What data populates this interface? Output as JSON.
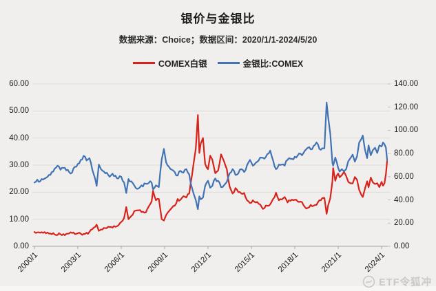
{
  "header": {
    "title": "银价与金银比",
    "subtitle": "数据来源：Choice；数据区间：2020/1/1-2024/5/20"
  },
  "watermark": {
    "text": "ETF令狐冲"
  },
  "chart_data": {
    "type": "line",
    "title": "银价与金银比",
    "subtitle": "数据来源：Choice；数据区间：2020/1/1-2024/5/20",
    "grid": "horizontal",
    "legend_position": "top",
    "x_ticks": [
      "2000/1",
      "2003/1",
      "2006/1",
      "2009/1",
      "2012/1",
      "2015/1",
      "2018/1",
      "2021/1",
      "2024/1"
    ],
    "x_tick_years": [
      2000,
      2003,
      2006,
      2009,
      2012,
      2015,
      2018,
      2021,
      2024
    ],
    "left_axis": {
      "min": 0,
      "max": 60,
      "ticks": [
        "0.00",
        "10.00",
        "20.00",
        "30.00",
        "40.00",
        "50.00",
        "60.00"
      ]
    },
    "right_axis": {
      "min": 0,
      "max": 140,
      "ticks": [
        "0.00",
        "20.00",
        "40.00",
        "60.00",
        "80.00",
        "100.00",
        "120.00",
        "140.00"
      ]
    },
    "series": [
      {
        "name": "COMEX白银",
        "axis": "left",
        "color": "#d8231c",
        "points": [
          [
            2000.0,
            5.3
          ],
          [
            2000.2,
            5.15
          ],
          [
            2000.4,
            5.0
          ],
          [
            2000.6,
            4.95
          ],
          [
            2000.8,
            4.8
          ],
          [
            2001.0,
            4.7
          ],
          [
            2001.2,
            4.45
          ],
          [
            2001.4,
            4.35
          ],
          [
            2001.6,
            4.2
          ],
          [
            2001.8,
            4.4
          ],
          [
            2002.0,
            4.5
          ],
          [
            2002.2,
            4.6
          ],
          [
            2002.4,
            4.75
          ],
          [
            2002.6,
            4.9
          ],
          [
            2002.8,
            4.5
          ],
          [
            2003.0,
            4.8
          ],
          [
            2003.2,
            4.65
          ],
          [
            2003.4,
            4.55
          ],
          [
            2003.6,
            5.0
          ],
          [
            2003.8,
            5.3
          ],
          [
            2004.0,
            6.3
          ],
          [
            2004.2,
            7.2
          ],
          [
            2004.3,
            8.0
          ],
          [
            2004.45,
            5.7
          ],
          [
            2004.6,
            6.2
          ],
          [
            2004.8,
            6.8
          ],
          [
            2005.0,
            6.7
          ],
          [
            2005.2,
            7.1
          ],
          [
            2005.4,
            6.9
          ],
          [
            2005.6,
            7.2
          ],
          [
            2005.8,
            7.7
          ],
          [
            2006.0,
            9.0
          ],
          [
            2006.2,
            10.5
          ],
          [
            2006.35,
            14.5
          ],
          [
            2006.5,
            10.0
          ],
          [
            2006.7,
            11.2
          ],
          [
            2006.9,
            13.0
          ],
          [
            2007.1,
            13.3
          ],
          [
            2007.3,
            13.4
          ],
          [
            2007.5,
            12.8
          ],
          [
            2007.7,
            12.5
          ],
          [
            2007.9,
            14.7
          ],
          [
            2008.1,
            16.5
          ],
          [
            2008.2,
            20.5
          ],
          [
            2008.4,
            17.0
          ],
          [
            2008.6,
            17.5
          ],
          [
            2008.8,
            10.0
          ],
          [
            2008.95,
            9.5
          ],
          [
            2009.1,
            11.5
          ],
          [
            2009.3,
            13.0
          ],
          [
            2009.5,
            14.2
          ],
          [
            2009.7,
            15.0
          ],
          [
            2009.9,
            17.5
          ],
          [
            2010.1,
            17.2
          ],
          [
            2010.3,
            18.5
          ],
          [
            2010.5,
            18.0
          ],
          [
            2010.7,
            19.5
          ],
          [
            2010.9,
            26.5
          ],
          [
            2011.0,
            30.5
          ],
          [
            2011.15,
            36.0
          ],
          [
            2011.3,
            48.5
          ],
          [
            2011.4,
            34.5
          ],
          [
            2011.5,
            38.0
          ],
          [
            2011.65,
            40.0
          ],
          [
            2011.8,
            30.5
          ],
          [
            2012.0,
            28.5
          ],
          [
            2012.15,
            33.5
          ],
          [
            2012.3,
            32.0
          ],
          [
            2012.5,
            27.0
          ],
          [
            2012.7,
            28.0
          ],
          [
            2012.9,
            34.0
          ],
          [
            2013.1,
            31.5
          ],
          [
            2013.3,
            28.5
          ],
          [
            2013.5,
            22.0
          ],
          [
            2013.7,
            19.5
          ],
          [
            2013.9,
            21.5
          ],
          [
            2014.1,
            20.0
          ],
          [
            2014.3,
            19.5
          ],
          [
            2014.5,
            19.7
          ],
          [
            2014.7,
            17.0
          ],
          [
            2014.9,
            16.0
          ],
          [
            2015.1,
            17.0
          ],
          [
            2015.3,
            16.2
          ],
          [
            2015.5,
            15.7
          ],
          [
            2015.7,
            14.6
          ],
          [
            2015.9,
            14.1
          ],
          [
            2016.1,
            15.0
          ],
          [
            2016.3,
            15.5
          ],
          [
            2016.5,
            17.5
          ],
          [
            2016.7,
            19.8
          ],
          [
            2016.9,
            17.0
          ],
          [
            2017.1,
            17.3
          ],
          [
            2017.3,
            18.2
          ],
          [
            2017.5,
            16.2
          ],
          [
            2017.7,
            16.8
          ],
          [
            2017.9,
            17.0
          ],
          [
            2018.1,
            17.2
          ],
          [
            2018.3,
            16.4
          ],
          [
            2018.5,
            16.3
          ],
          [
            2018.7,
            14.5
          ],
          [
            2018.9,
            14.2
          ],
          [
            2019.1,
            15.3
          ],
          [
            2019.3,
            15.0
          ],
          [
            2019.5,
            15.3
          ],
          [
            2019.7,
            17.0
          ],
          [
            2019.9,
            17.8
          ],
          [
            2020.05,
            17.9
          ],
          [
            2020.2,
            12.0
          ],
          [
            2020.3,
            15.0
          ],
          [
            2020.45,
            17.8
          ],
          [
            2020.6,
            24.0
          ],
          [
            2020.65,
            28.9
          ],
          [
            2020.8,
            24.2
          ],
          [
            2021.0,
            26.9
          ],
          [
            2021.1,
            25.5
          ],
          [
            2021.25,
            26.3
          ],
          [
            2021.4,
            27.5
          ],
          [
            2021.55,
            26.0
          ],
          [
            2021.7,
            23.8
          ],
          [
            2021.85,
            23.3
          ],
          [
            2022.0,
            23.2
          ],
          [
            2022.15,
            25.6
          ],
          [
            2022.3,
            24.6
          ],
          [
            2022.45,
            20.8
          ],
          [
            2022.6,
            19.0
          ],
          [
            2022.7,
            18.2
          ],
          [
            2022.85,
            21.2
          ],
          [
            2023.0,
            24.0
          ],
          [
            2023.1,
            21.8
          ],
          [
            2023.25,
            25.4
          ],
          [
            2023.4,
            23.6
          ],
          [
            2023.55,
            23.0
          ],
          [
            2023.7,
            23.3
          ],
          [
            2023.85,
            21.9
          ],
          [
            2024.0,
            23.8
          ],
          [
            2024.1,
            22.4
          ],
          [
            2024.2,
            23.3
          ],
          [
            2024.3,
            26.7
          ],
          [
            2024.38,
            31.5
          ]
        ]
      },
      {
        "name": "金银比:COMEX",
        "axis": "right",
        "color": "#4173b4",
        "points": [
          [
            2000.0,
            55
          ],
          [
            2000.2,
            57.5
          ],
          [
            2000.4,
            56
          ],
          [
            2000.6,
            57.5
          ],
          [
            2000.8,
            59
          ],
          [
            2001.0,
            61.5
          ],
          [
            2001.2,
            64
          ],
          [
            2001.4,
            67
          ],
          [
            2001.6,
            69.5
          ],
          [
            2001.8,
            66
          ],
          [
            2002.0,
            67.5
          ],
          [
            2002.2,
            65.5
          ],
          [
            2002.4,
            64
          ],
          [
            2002.6,
            63.5
          ],
          [
            2002.8,
            68.5
          ],
          [
            2003.0,
            71
          ],
          [
            2003.2,
            74.5
          ],
          [
            2003.4,
            78
          ],
          [
            2003.6,
            74
          ],
          [
            2003.8,
            76
          ],
          [
            2004.0,
            66
          ],
          [
            2004.2,
            58
          ],
          [
            2004.3,
            52
          ],
          [
            2004.45,
            70.5
          ],
          [
            2004.6,
            66.5
          ],
          [
            2004.8,
            64.5
          ],
          [
            2005.0,
            63.5
          ],
          [
            2005.2,
            60
          ],
          [
            2005.4,
            62.5
          ],
          [
            2005.6,
            61
          ],
          [
            2005.8,
            58.5
          ],
          [
            2006.0,
            60
          ],
          [
            2006.2,
            55
          ],
          [
            2006.35,
            46
          ],
          [
            2006.5,
            58
          ],
          [
            2006.7,
            56
          ],
          [
            2006.9,
            52.5
          ],
          [
            2007.1,
            49.5
          ],
          [
            2007.3,
            51
          ],
          [
            2007.5,
            51.5
          ],
          [
            2007.7,
            54
          ],
          [
            2007.9,
            54.5
          ],
          [
            2008.1,
            55
          ],
          [
            2008.2,
            49
          ],
          [
            2008.4,
            52.5
          ],
          [
            2008.6,
            51
          ],
          [
            2008.8,
            75
          ],
          [
            2008.95,
            84
          ],
          [
            2009.1,
            72.5
          ],
          [
            2009.3,
            68.5
          ],
          [
            2009.5,
            66
          ],
          [
            2009.7,
            64
          ],
          [
            2009.9,
            61
          ],
          [
            2010.1,
            65
          ],
          [
            2010.3,
            63.5
          ],
          [
            2010.5,
            66.5
          ],
          [
            2010.7,
            62
          ],
          [
            2010.9,
            50
          ],
          [
            2011.0,
            45.5
          ],
          [
            2011.15,
            40
          ],
          [
            2011.3,
            32
          ],
          [
            2011.4,
            43
          ],
          [
            2011.5,
            40.5
          ],
          [
            2011.65,
            42
          ],
          [
            2011.8,
            52
          ],
          [
            2012.0,
            56.5
          ],
          [
            2012.15,
            50.5
          ],
          [
            2012.3,
            52
          ],
          [
            2012.5,
            58.5
          ],
          [
            2012.7,
            56.5
          ],
          [
            2012.9,
            51
          ],
          [
            2013.1,
            52.5
          ],
          [
            2013.3,
            55.5
          ],
          [
            2013.5,
            63
          ],
          [
            2013.7,
            66.5
          ],
          [
            2013.9,
            61.5
          ],
          [
            2014.1,
            63
          ],
          [
            2014.3,
            66.5
          ],
          [
            2014.5,
            64
          ],
          [
            2014.7,
            70
          ],
          [
            2014.9,
            74.5
          ],
          [
            2015.1,
            69.5
          ],
          [
            2015.3,
            72
          ],
          [
            2015.5,
            74
          ],
          [
            2015.7,
            76.5
          ],
          [
            2015.9,
            75.5
          ],
          [
            2016.1,
            79.5
          ],
          [
            2016.3,
            82.5
          ],
          [
            2016.5,
            74
          ],
          [
            2016.7,
            66.5
          ],
          [
            2016.9,
            70.5
          ],
          [
            2017.1,
            70.5
          ],
          [
            2017.3,
            69.5
          ],
          [
            2017.5,
            74.5
          ],
          [
            2017.7,
            75.5
          ],
          [
            2017.9,
            75
          ],
          [
            2018.1,
            76.5
          ],
          [
            2018.3,
            80
          ],
          [
            2018.5,
            78.5
          ],
          [
            2018.7,
            82.5
          ],
          [
            2018.9,
            85
          ],
          [
            2019.1,
            83.5
          ],
          [
            2019.3,
            86.5
          ],
          [
            2019.5,
            89.5
          ],
          [
            2019.7,
            84
          ],
          [
            2019.9,
            84.5
          ],
          [
            2020.05,
            84.5
          ],
          [
            2020.2,
            124
          ],
          [
            2020.3,
            112
          ],
          [
            2020.45,
            97
          ],
          [
            2020.6,
            72
          ],
          [
            2020.65,
            69.5
          ],
          [
            2020.8,
            76.5
          ],
          [
            2021.0,
            67.5
          ],
          [
            2021.1,
            64.5
          ],
          [
            2021.25,
            66.5
          ],
          [
            2021.4,
            64.5
          ],
          [
            2021.55,
            66.5
          ],
          [
            2021.7,
            73.5
          ],
          [
            2021.85,
            76
          ],
          [
            2022.0,
            79
          ],
          [
            2022.15,
            73
          ],
          [
            2022.3,
            77.5
          ],
          [
            2022.45,
            89.5
          ],
          [
            2022.6,
            92.5
          ],
          [
            2022.7,
            95.5
          ],
          [
            2022.85,
            83.5
          ],
          [
            2023.0,
            76
          ],
          [
            2023.1,
            87
          ],
          [
            2023.25,
            78.5
          ],
          [
            2023.4,
            83
          ],
          [
            2023.55,
            85
          ],
          [
            2023.7,
            80.5
          ],
          [
            2023.85,
            87
          ],
          [
            2024.0,
            86
          ],
          [
            2024.1,
            89.5
          ],
          [
            2024.2,
            88
          ],
          [
            2024.3,
            85
          ],
          [
            2024.38,
            74.5
          ]
        ]
      }
    ]
  }
}
